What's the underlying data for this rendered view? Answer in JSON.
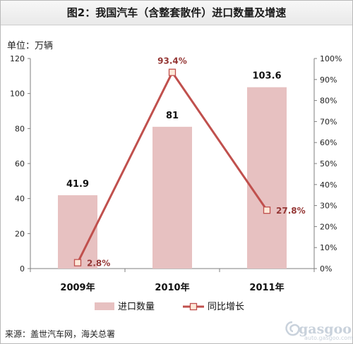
{
  "title": "图2：我国汽车（含整套散件）进口数量及增速",
  "unit_label": "单位：万辆",
  "source": "来源：盖世汽车网，海关总署",
  "watermark": {
    "text": "gasgoo",
    "sub": "auto.gasgoo.com"
  },
  "colors": {
    "bar": "#e7c1c1",
    "line": "#c0504d",
    "marker_fill": "#fde9d9",
    "axis": "#7f7f7f",
    "grid": "#d9d9d9"
  },
  "chart_data": {
    "type": "bar",
    "categories": [
      "2009年",
      "2010年",
      "2011年"
    ],
    "series": [
      {
        "name": "进口数量",
        "type": "bar",
        "axis": "left",
        "values": [
          41.9,
          81,
          103.6
        ],
        "labels": [
          "41.9",
          "81",
          "103.6"
        ]
      },
      {
        "name": "同比增长",
        "type": "line",
        "axis": "right",
        "values": [
          2.8,
          93.4,
          27.8
        ],
        "labels": [
          "2.8%",
          "93.4%",
          "27.8%"
        ]
      }
    ],
    "left_axis": {
      "min": 0,
      "max": 120,
      "ticks": [
        "0",
        "20",
        "40",
        "60",
        "80",
        "100",
        "120"
      ]
    },
    "right_axis": {
      "min": 0,
      "max": 100,
      "ticks": [
        "0%",
        "10%",
        "20%",
        "30%",
        "40%",
        "50%",
        "60%",
        "70%",
        "80%",
        "90%",
        "100%"
      ]
    },
    "grid": false,
    "legend_position": "bottom"
  }
}
